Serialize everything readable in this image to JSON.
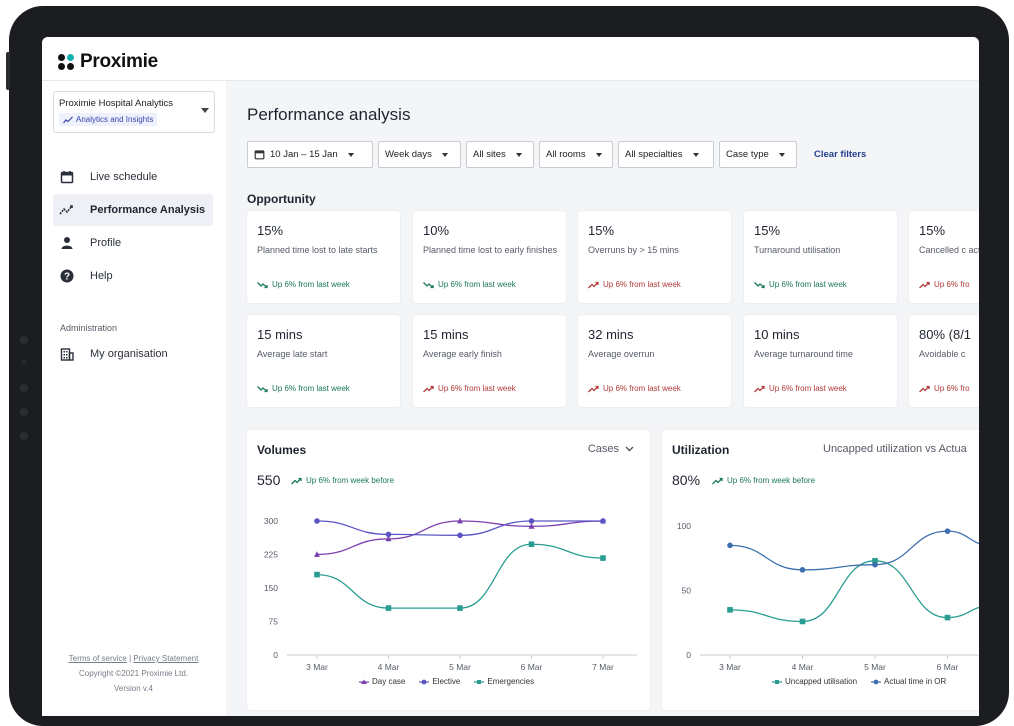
{
  "app": {
    "logo_text": "Proximie"
  },
  "sidebar": {
    "org_name": "Proximie Hospital Analytics",
    "org_tag": "Analytics and Insights",
    "items": [
      {
        "label": "Live schedule",
        "icon": "calendar-icon"
      },
      {
        "label": "Performance Analysis",
        "icon": "trending-icon"
      },
      {
        "label": "Profile",
        "icon": "person-icon"
      },
      {
        "label": "Help",
        "icon": "help-icon"
      }
    ],
    "admin_heading": "Administration",
    "admin_items": [
      {
        "label": "My organisation",
        "icon": "building-icon"
      }
    ],
    "footer": {
      "terms": "Terms of service",
      "separator": "|",
      "privacy": "Privacy Statement",
      "copyright": "Copyright ©2021 Proximie Ltd.",
      "version": "Version v.4"
    }
  },
  "main": {
    "title": "Performance analysis",
    "filters": {
      "date": "10 Jan – 15 Jan",
      "days": "Week days",
      "sites": "All sites",
      "rooms": "All rooms",
      "specialties": "All specialties",
      "case_type": "Case type",
      "clear": "Clear filters"
    },
    "opportunity": {
      "title": "Opportunity",
      "cards": [
        {
          "value": "15%",
          "desc": "Planned time lost to late starts",
          "trend": "Up 6% from last week",
          "status": "good"
        },
        {
          "value": "10%",
          "desc": "Planned time lost to early finishes",
          "trend": "Up 6% from last week",
          "status": "good"
        },
        {
          "value": "15%",
          "desc": "Overruns by > 15 mins",
          "trend": "Up 6% from last week",
          "status": "bad"
        },
        {
          "value": "15%",
          "desc": "Turnaround utilisation",
          "trend": "Up 6% from last week",
          "status": "good"
        },
        {
          "value": "15%",
          "desc": "Cancelled c activity",
          "trend": "Up 6% fro",
          "status": "bad"
        },
        {
          "value": "15 mins",
          "desc": "Average late start",
          "trend": "Up 6% from last week",
          "status": "good"
        },
        {
          "value": "15 mins",
          "desc": "Average early finish",
          "trend": "Up 6% from last week",
          "status": "bad"
        },
        {
          "value": "32 mins",
          "desc": "Average overrun",
          "trend": "Up 6% from last week",
          "status": "bad"
        },
        {
          "value": "10 mins",
          "desc": "Average turnaround time",
          "trend": "Up 6% from last week",
          "status": "bad"
        },
        {
          "value": "80% (8/1",
          "desc": "Avoidable c",
          "trend": "Up 6% fro",
          "status": "bad"
        }
      ]
    },
    "volumes": {
      "title": "Volumes",
      "menu": "Cases",
      "total": "550",
      "trend": "Up 6% from week before"
    },
    "utilization": {
      "title": "Utilization",
      "menu": "Uncapped utilization vs Actua",
      "total": "80%",
      "trend": "Up 6% from week before"
    }
  },
  "colors": {
    "good": "#1c7a55",
    "bad": "#b23a3a",
    "accent": "#26408f",
    "day_case": "#7b3fb0",
    "elective": "#5a54c4",
    "emergencies": "#2a9d92",
    "actual": "#3d6fae"
  },
  "chart_data": [
    {
      "type": "line",
      "title": "Volumes",
      "categories": [
        "3 Mar",
        "4 Mar",
        "5 Mar",
        "6 Mar",
        "7 Mar"
      ],
      "y_ticks": [
        "0",
        "75",
        "150",
        "225",
        "300"
      ],
      "ylim": [
        0,
        300
      ],
      "series": [
        {
          "name": "Day case",
          "values": [
            225,
            260,
            300,
            288,
            300
          ]
        },
        {
          "name": "Elective",
          "values": [
            300,
            270,
            268,
            300,
            300
          ]
        },
        {
          "name": "Emergencies",
          "values": [
            180,
            105,
            105,
            248,
            217
          ]
        }
      ]
    },
    {
      "type": "line",
      "title": "Utilization",
      "categories": [
        "3 Mar",
        "4 Mar",
        "5 Mar",
        "6 Mar"
      ],
      "y_ticks": [
        "0",
        "50",
        "100"
      ],
      "ylim": [
        0,
        100
      ],
      "series": [
        {
          "name": "Uncapped utilisation",
          "values": [
            35,
            26,
            73,
            29
          ]
        },
        {
          "name": "Actual time in OR",
          "values": [
            85,
            66,
            70,
            96
          ]
        }
      ]
    }
  ]
}
